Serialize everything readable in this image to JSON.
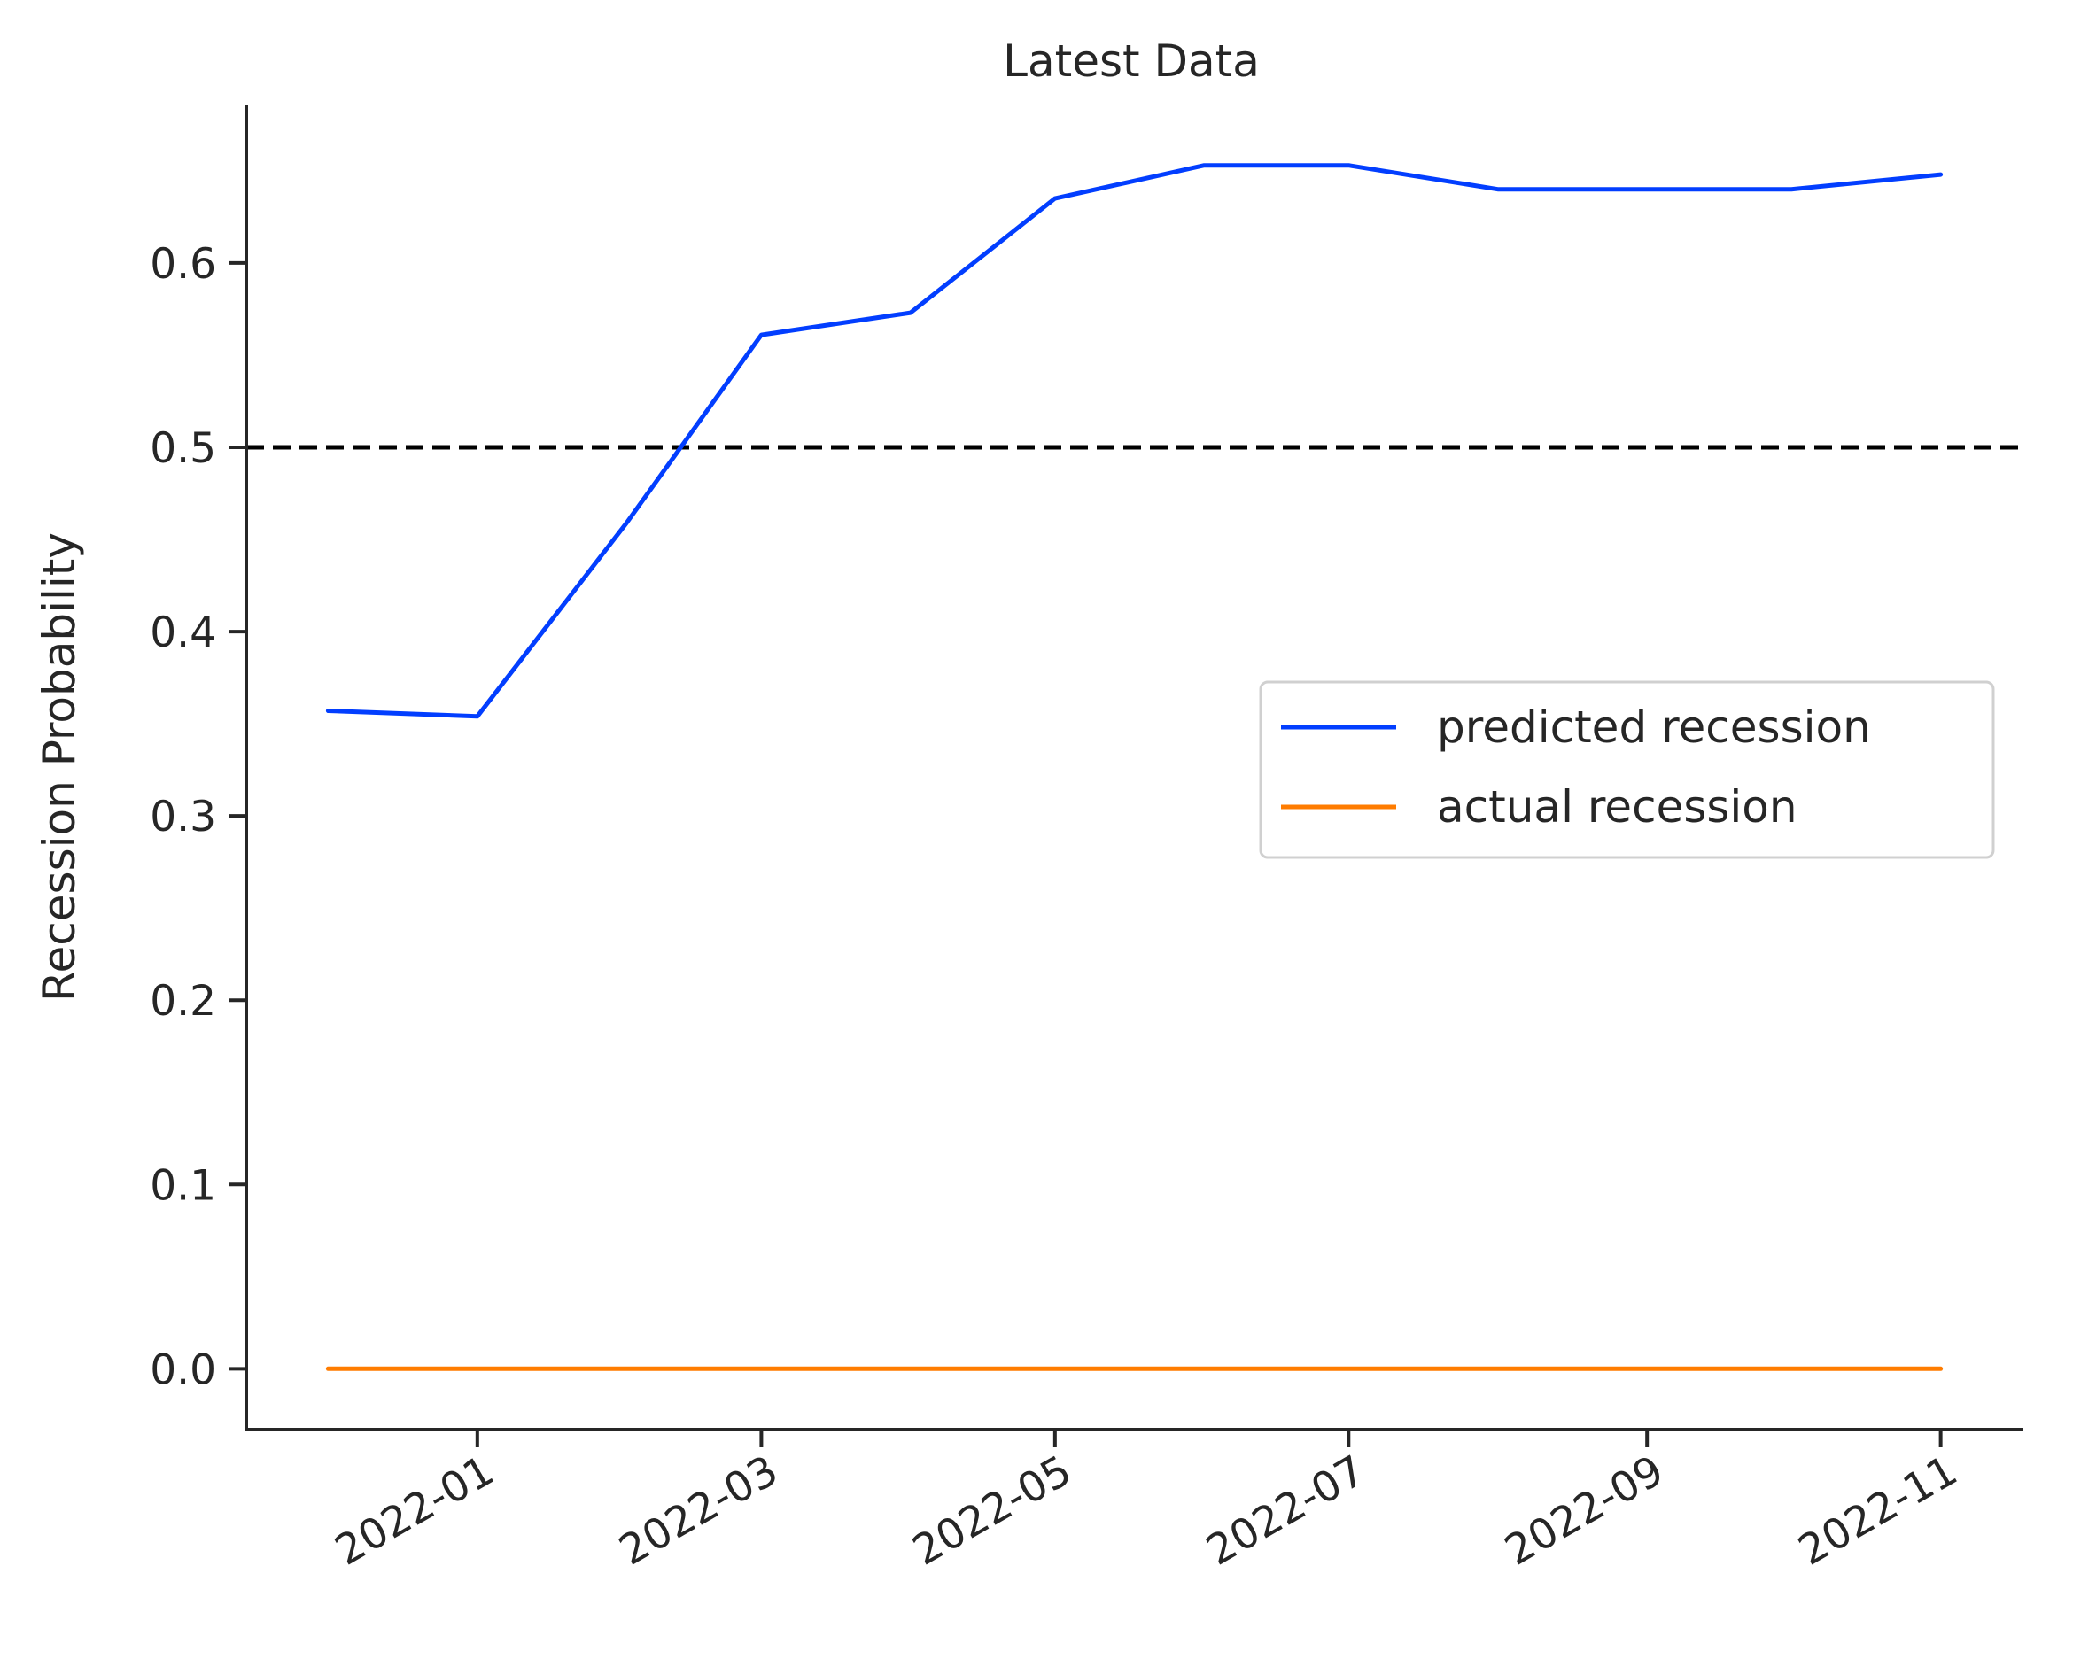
{
  "chart_data": {
    "type": "line",
    "title": "Latest Data",
    "xlabel": "",
    "ylabel": "Recession Probability",
    "x": [
      "2021-12-01",
      "2022-01-01",
      "2022-02-01",
      "2022-03-01",
      "2022-04-01",
      "2022-05-01",
      "2022-06-01",
      "2022-07-01",
      "2022-08-01",
      "2022-09-01",
      "2022-10-01",
      "2022-11-01"
    ],
    "series": [
      {
        "name": "predicted recession",
        "color": "#023eff",
        "values": [
          0.357,
          0.354,
          0.459,
          0.561,
          0.573,
          0.635,
          0.653,
          0.653,
          0.64,
          0.64,
          0.64,
          0.648
        ]
      },
      {
        "name": "actual recession",
        "color": "#ff7c00",
        "values": [
          0,
          0,
          0,
          0,
          0,
          0,
          0,
          0,
          0,
          0,
          0,
          0
        ]
      }
    ],
    "threshold": {
      "value": 0.5,
      "style": "dashed",
      "color": "#000000"
    },
    "xticks": [
      "2022-01",
      "2022-03",
      "2022-05",
      "2022-07",
      "2022-09",
      "2022-11"
    ],
    "yticks": [
      "0.0",
      "0.1",
      "0.2",
      "0.3",
      "0.4",
      "0.5",
      "0.6"
    ],
    "ylim": [
      -0.033,
      0.686
    ],
    "xlim": [
      "2021-11-14",
      "2022-11-18"
    ],
    "grid": false,
    "legend_position": "center-right"
  }
}
